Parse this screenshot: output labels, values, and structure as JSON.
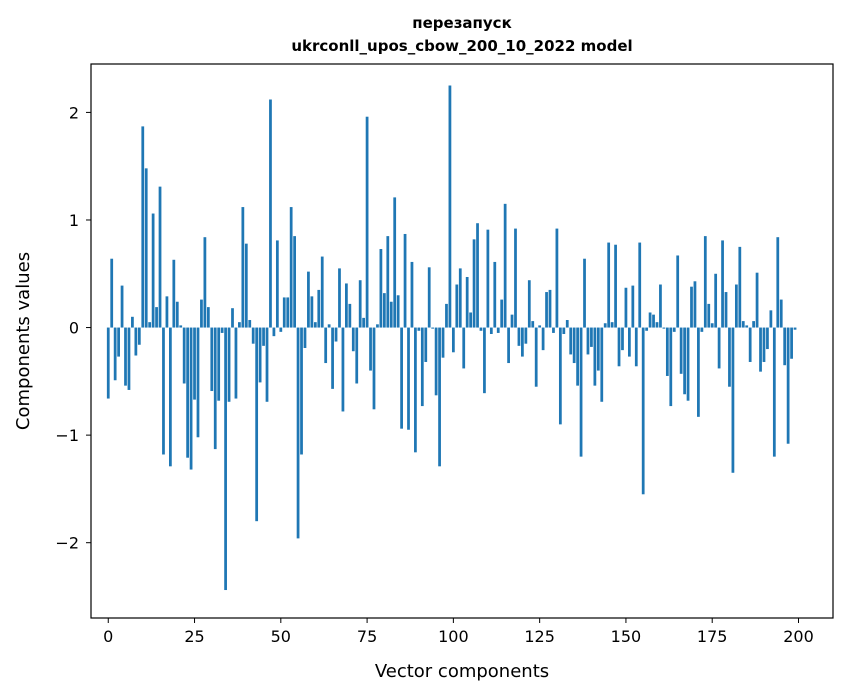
{
  "chart_data": {
    "type": "bar",
    "title_line1": "перезапуск",
    "title_line2": "ukrconll_upos_cbow_200_10_2022 model",
    "xlabel": "Vector components",
    "ylabel": "Components values",
    "xlim": [
      -5,
      210
    ],
    "ylim": [
      -2.7,
      2.45
    ],
    "xticks": [
      0,
      25,
      50,
      75,
      100,
      125,
      150,
      175,
      200
    ],
    "xtick_labels": [
      "0",
      "25",
      "50",
      "75",
      "100",
      "125",
      "150",
      "175",
      "200"
    ],
    "yticks": [
      -2,
      -1,
      0,
      1,
      2
    ],
    "ytick_labels": [
      "−2",
      "−1",
      "0",
      "1",
      "2"
    ],
    "bar_color": "#1f77b4",
    "grid": false,
    "values": [
      -0.66,
      0.64,
      -0.49,
      -0.27,
      0.39,
      -0.54,
      -0.58,
      0.1,
      -0.26,
      -0.16,
      1.87,
      1.48,
      0.05,
      1.06,
      0.19,
      1.31,
      -1.18,
      0.29,
      -1.29,
      0.63,
      0.24,
      0.02,
      -0.52,
      -1.21,
      -1.32,
      -0.67,
      -1.02,
      0.26,
      0.84,
      0.19,
      -0.59,
      -1.13,
      -0.68,
      -0.05,
      -2.44,
      -0.69,
      0.18,
      -0.66,
      0.05,
      1.12,
      0.78,
      0.07,
      -0.15,
      -1.8,
      -0.51,
      -0.17,
      -0.69,
      2.12,
      -0.08,
      0.81,
      -0.04,
      0.28,
      0.28,
      1.12,
      0.85,
      -1.96,
      -1.18,
      -0.19,
      0.52,
      0.29,
      0.05,
      0.35,
      0.66,
      -0.33,
      0.03,
      -0.57,
      -0.13,
      0.55,
      -0.78,
      0.41,
      0.22,
      -0.22,
      -0.52,
      0.44,
      0.09,
      1.96,
      -0.4,
      -0.76,
      0.03,
      0.73,
      0.32,
      0.85,
      0.24,
      1.21,
      0.3,
      -0.94,
      0.87,
      -0.95,
      0.61,
      -1.16,
      -0.03,
      -0.73,
      -0.32,
      0.56,
      -0.01,
      -0.63,
      -1.29,
      -0.28,
      0.22,
      2.25,
      -0.23,
      0.4,
      0.55,
      -0.38,
      0.47,
      0.14,
      0.82,
      0.97,
      -0.03,
      -0.61,
      0.91,
      -0.06,
      0.61,
      -0.05,
      0.26,
      1.15,
      -0.33,
      0.12,
      0.92,
      -0.17,
      -0.27,
      -0.15,
      0.44,
      0.06,
      -0.55,
      0.02,
      -0.21,
      0.33,
      0.35,
      -0.05,
      0.92,
      -0.9,
      -0.06,
      0.07,
      -0.25,
      -0.33,
      -0.54,
      -1.2,
      0.64,
      -0.25,
      -0.18,
      -0.54,
      -0.4,
      -0.69,
      0.04,
      0.79,
      0.05,
      0.77,
      -0.36,
      -0.21,
      0.37,
      -0.27,
      0.39,
      -0.36,
      0.79,
      -1.55,
      -0.03,
      0.14,
      0.12,
      0.05,
      0.4,
      -0.01,
      -0.45,
      -0.73,
      -0.04,
      0.67,
      -0.43,
      -0.62,
      -0.68,
      0.38,
      0.43,
      -0.83,
      -0.04,
      0.85,
      0.22,
      0.04,
      0.5,
      -0.38,
      0.81,
      0.33,
      -0.55,
      -1.35,
      0.4,
      0.75,
      0.06,
      0.02,
      -0.32,
      0.06,
      0.51,
      -0.41,
      -0.32,
      -0.2,
      0.16,
      -1.2,
      0.84,
      0.26,
      -0.35,
      -1.08,
      -0.29,
      -0.02
    ]
  }
}
